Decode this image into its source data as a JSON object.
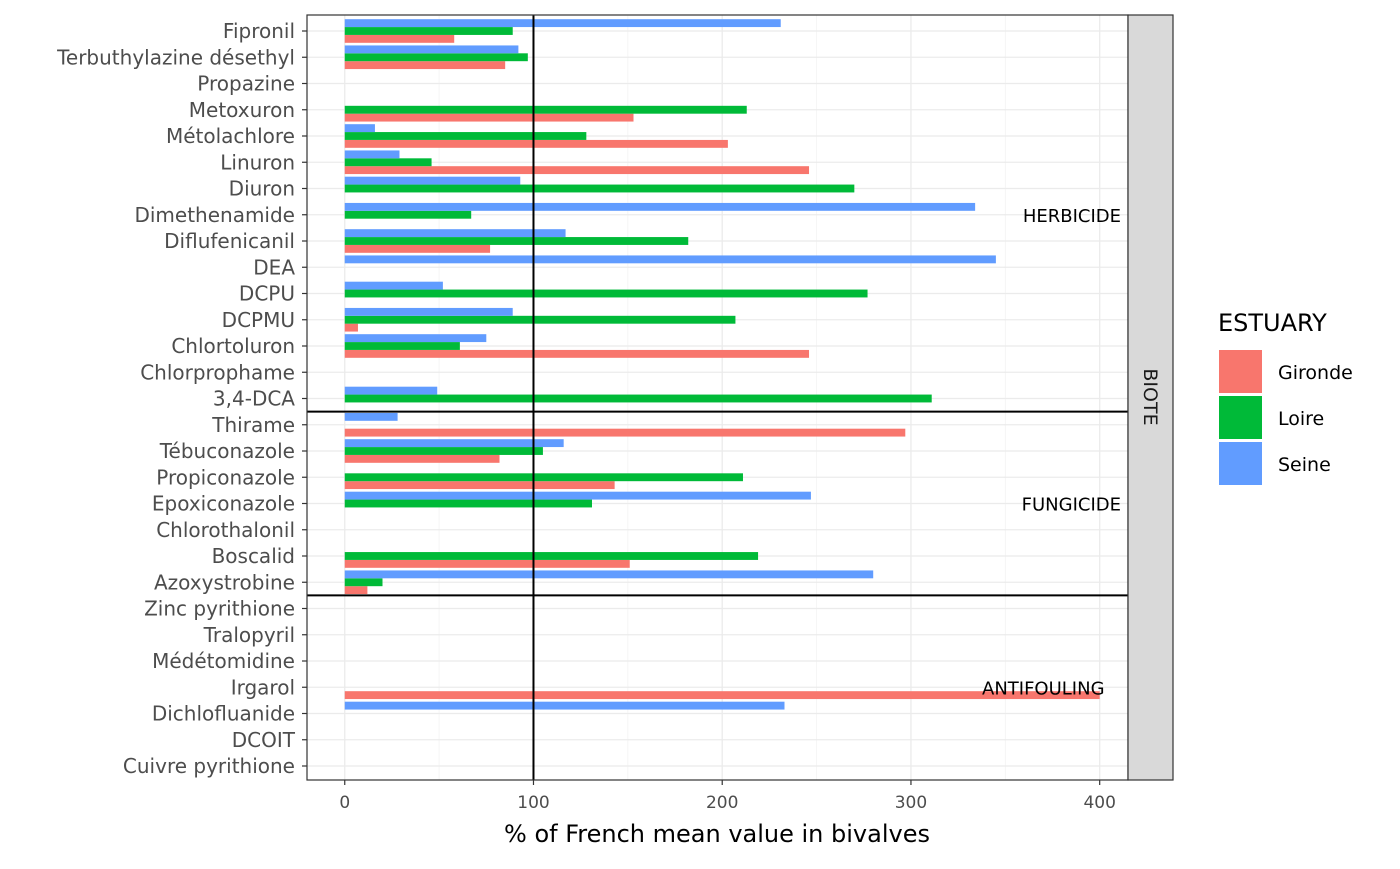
{
  "chart_data": {
    "type": "bar",
    "orientation": "horizontal",
    "xlabel": "% of French mean value in bivalves",
    "xlim": [
      -20,
      415
    ],
    "xticks": [
      0,
      100,
      200,
      300,
      400
    ],
    "reference_line": 100,
    "grid": true,
    "legend_position": "right",
    "legend": {
      "title": "ESTUARY",
      "entries": [
        {
          "name": "Gironde",
          "color": "#f8766d"
        },
        {
          "name": "Loire",
          "color": "#00ba38"
        },
        {
          "name": "Seine",
          "color": "#619cff"
        }
      ]
    },
    "strip_label": "BIOTE",
    "groups": [
      {
        "label": "HERBICIDE",
        "rows": [
          {
            "name": "Fipronil",
            "values": {
              "Gironde": 58,
              "Loire": 89,
              "Seine": 231
            }
          },
          {
            "name": "Terbuthylazine désethyl",
            "values": {
              "Gironde": 85,
              "Loire": 97,
              "Seine": 92
            }
          },
          {
            "name": "Propazine",
            "values": {}
          },
          {
            "name": "Metoxuron",
            "values": {
              "Gironde": 153,
              "Loire": 213
            }
          },
          {
            "name": "Métolachlore",
            "values": {
              "Gironde": 203,
              "Loire": 128,
              "Seine": 16
            }
          },
          {
            "name": "Linuron",
            "values": {
              "Gironde": 246,
              "Loire": 46,
              "Seine": 29
            }
          },
          {
            "name": "Diuron",
            "values": {
              "Loire": 270,
              "Seine": 93
            }
          },
          {
            "name": "Dimethenamide",
            "values": {
              "Loire": 67,
              "Seine": 334
            }
          },
          {
            "name": "Diflufenicanil",
            "values": {
              "Gironde": 77,
              "Loire": 182,
              "Seine": 117
            }
          },
          {
            "name": "DEA",
            "values": {
              "Seine": 345
            }
          },
          {
            "name": "DCPU",
            "values": {
              "Loire": 277,
              "Seine": 52
            }
          },
          {
            "name": "DCPMU",
            "values": {
              "Gironde": 7,
              "Loire": 207,
              "Seine": 89
            }
          },
          {
            "name": "Chlortoluron",
            "values": {
              "Gironde": 246,
              "Loire": 61,
              "Seine": 75
            }
          },
          {
            "name": "Chlorprophame",
            "values": {}
          },
          {
            "name": "3,4-DCA",
            "values": {
              "Loire": 311,
              "Seine": 49
            }
          }
        ]
      },
      {
        "label": "FUNGICIDE",
        "rows": [
          {
            "name": "Thirame",
            "values": {
              "Gironde": 297,
              "Seine": 28
            }
          },
          {
            "name": "Tébuconazole",
            "values": {
              "Gironde": 82,
              "Loire": 105,
              "Seine": 116
            }
          },
          {
            "name": "Propiconazole",
            "values": {
              "Gironde": 143,
              "Loire": 211
            }
          },
          {
            "name": "Epoxiconazole",
            "values": {
              "Loire": 131,
              "Seine": 247
            }
          },
          {
            "name": "Chlorothalonil",
            "values": {}
          },
          {
            "name": "Boscalid",
            "values": {
              "Gironde": 151,
              "Loire": 219
            }
          },
          {
            "name": "Azoxystrobine",
            "values": {
              "Gironde": 12,
              "Loire": 20,
              "Seine": 280
            }
          }
        ]
      },
      {
        "label": "ANTIFOULING",
        "rows": [
          {
            "name": "Zinc pyrithione",
            "values": {}
          },
          {
            "name": "Tralopyril",
            "values": {}
          },
          {
            "name": "Médétomidine",
            "values": {}
          },
          {
            "name": "Irgarol",
            "values": {
              "Gironde": 400
            }
          },
          {
            "name": "Dichlofluanide",
            "values": {
              "Seine": 233
            }
          },
          {
            "name": "DCOIT",
            "values": {}
          },
          {
            "name": "Cuivre pyrithione",
            "values": {}
          }
        ]
      }
    ]
  }
}
